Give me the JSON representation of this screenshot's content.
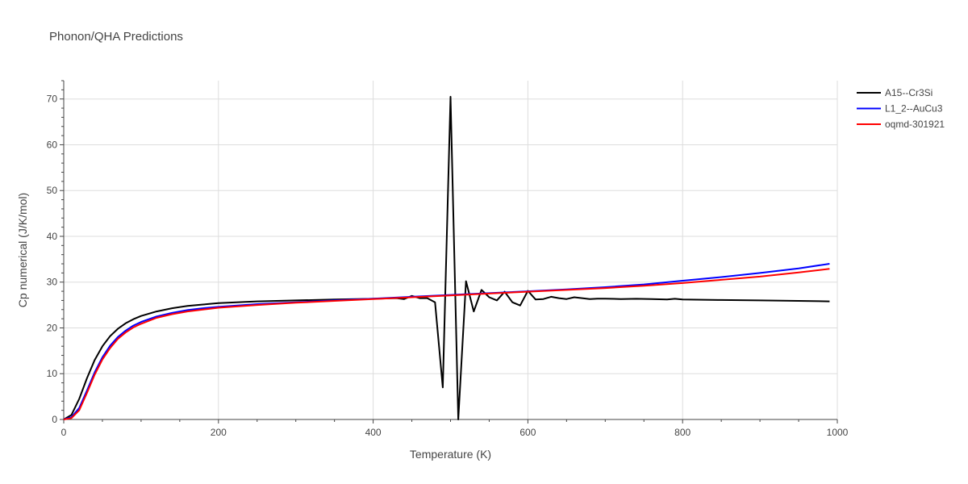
{
  "chart_data": {
    "type": "line",
    "title": "Phonon/QHA Predictions",
    "xlabel": "Temperature (K)",
    "ylabel": "Cp numerical (J/K/mol)",
    "xlim": [
      0,
      1000
    ],
    "ylim": [
      0,
      74
    ],
    "xticks": [
      0,
      200,
      400,
      600,
      800,
      1000
    ],
    "yticks": [
      0,
      10,
      20,
      30,
      40,
      50,
      60,
      70
    ],
    "grid": true,
    "legend_position": "top-right",
    "series": [
      {
        "name": "A15--Cr3Si",
        "color": "#000000",
        "x": [
          0,
          10,
          20,
          30,
          40,
          50,
          60,
          70,
          80,
          90,
          100,
          120,
          140,
          160,
          180,
          200,
          250,
          300,
          350,
          400,
          430,
          440,
          450,
          460,
          470,
          480,
          490,
          500,
          510,
          520,
          530,
          540,
          550,
          560,
          570,
          580,
          590,
          600,
          610,
          620,
          630,
          640,
          650,
          660,
          670,
          680,
          690,
          700,
          720,
          740,
          760,
          780,
          790,
          800,
          850,
          900,
          950,
          990
        ],
        "y": [
          0,
          1,
          4.5,
          9,
          13,
          16,
          18.2,
          19.8,
          21,
          21.9,
          22.6,
          23.6,
          24.3,
          24.8,
          25.1,
          25.4,
          25.8,
          26.0,
          26.2,
          26.35,
          26.5,
          26.3,
          27.0,
          26.5,
          26.5,
          25.6,
          7.0,
          70.5,
          0.0,
          30.2,
          23.6,
          28.3,
          26.7,
          26.0,
          27.9,
          25.6,
          24.9,
          28.1,
          26.2,
          26.3,
          26.8,
          26.5,
          26.3,
          26.7,
          26.5,
          26.3,
          26.4,
          26.4,
          26.3,
          26.35,
          26.3,
          26.2,
          26.35,
          26.2,
          26.1,
          26.0,
          25.9,
          25.8
        ]
      },
      {
        "name": "L1_2--AuCu3",
        "color": "#0000ff",
        "x": [
          0,
          10,
          20,
          30,
          40,
          50,
          60,
          70,
          80,
          90,
          100,
          120,
          140,
          160,
          180,
          200,
          250,
          300,
          350,
          400,
          450,
          500,
          550,
          600,
          650,
          700,
          750,
          800,
          850,
          900,
          950,
          990
        ],
        "y": [
          0,
          0.5,
          2.5,
          6.3,
          10.3,
          13.6,
          16.1,
          18.0,
          19.4,
          20.5,
          21.3,
          22.5,
          23.3,
          23.9,
          24.3,
          24.6,
          25.2,
          25.6,
          26.0,
          26.4,
          26.8,
          27.2,
          27.6,
          28.0,
          28.4,
          28.9,
          29.5,
          30.3,
          31.1,
          32.0,
          33.0,
          34.0
        ]
      },
      {
        "name": "oqmd-301921",
        "color": "#ff0000",
        "x": [
          0,
          10,
          20,
          30,
          40,
          50,
          60,
          70,
          80,
          90,
          100,
          120,
          140,
          160,
          180,
          200,
          250,
          300,
          350,
          400,
          450,
          500,
          550,
          600,
          650,
          700,
          750,
          800,
          850,
          900,
          950,
          990
        ],
        "y": [
          0,
          0.3,
          2.0,
          5.8,
          9.8,
          13.1,
          15.6,
          17.6,
          19.0,
          20.1,
          20.9,
          22.2,
          23.0,
          23.6,
          24.0,
          24.4,
          25.0,
          25.5,
          25.9,
          26.3,
          26.7,
          27.1,
          27.5,
          27.9,
          28.3,
          28.7,
          29.2,
          29.8,
          30.5,
          31.2,
          32.1,
          32.9
        ]
      }
    ]
  }
}
